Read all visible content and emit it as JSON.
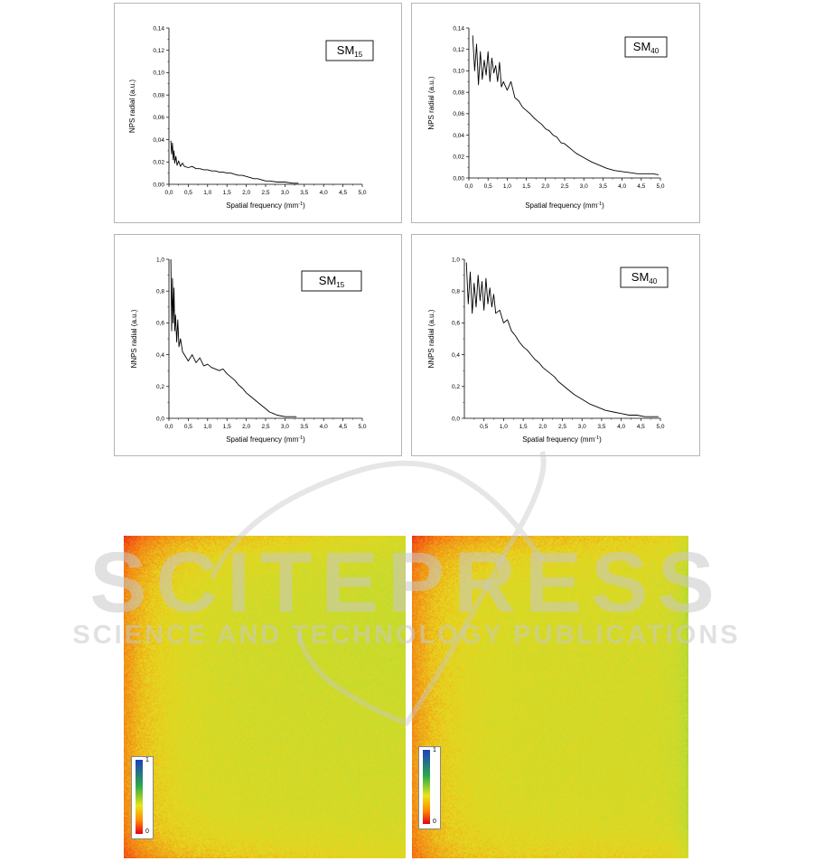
{
  "chart_data": [
    {
      "type": "line",
      "label": "SM",
      "label_sub": "15",
      "xlabel": "Spatial frequency (mm",
      "xlabel_sup": "-1",
      "xlabel_end": ")",
      "ylabel": "NPS radial (a.u.)",
      "xlim": [
        0,
        5
      ],
      "ylim": [
        0,
        0.14
      ],
      "xticks": [
        "0,0",
        "0,5",
        "1,0",
        "1,5",
        "2,0",
        "2,5",
        "3,0",
        "3,5",
        "4,0",
        "4,5",
        "5,0"
      ],
      "yticks": [
        "0,00",
        "0,02",
        "0,04",
        "0,06",
        "0,08",
        "0,10",
        "0,12",
        "0,14"
      ],
      "x": [
        0.05,
        0.07,
        0.09,
        0.11,
        0.13,
        0.15,
        0.18,
        0.21,
        0.25,
        0.3,
        0.35,
        0.4,
        0.5,
        0.6,
        0.7,
        0.8,
        0.9,
        1.0,
        1.1,
        1.2,
        1.3,
        1.4,
        1.5,
        1.6,
        1.7,
        1.8,
        1.9,
        2.0,
        2.1,
        2.2,
        2.3,
        2.4,
        2.5,
        2.6,
        2.8,
        3.0,
        3.2,
        3.35
      ],
      "y": [
        0.039,
        0.027,
        0.037,
        0.022,
        0.03,
        0.019,
        0.025,
        0.017,
        0.021,
        0.016,
        0.019,
        0.016,
        0.015,
        0.016,
        0.014,
        0.014,
        0.013,
        0.013,
        0.012,
        0.012,
        0.011,
        0.011,
        0.01,
        0.01,
        0.009,
        0.008,
        0.008,
        0.007,
        0.006,
        0.005,
        0.005,
        0.004,
        0.003,
        0.003,
        0.002,
        0.002,
        0.001,
        0.001
      ]
    },
    {
      "type": "line",
      "label": "SM",
      "label_sub": "40",
      "xlabel": "Spatial frequency (mm",
      "xlabel_sup": "-1",
      "xlabel_end": ")",
      "ylabel": "NPS radial (a.u.)",
      "xlim": [
        0,
        5
      ],
      "ylim": [
        0,
        0.14
      ],
      "xticks": [
        "0,0",
        "0,5",
        "1,0",
        "1,5",
        "2,0",
        "2,5",
        "3,0",
        "3,5",
        "4,0",
        "4,5",
        "5,0"
      ],
      "yticks": [
        "0,00",
        "0,02",
        "0,04",
        "0,06",
        "0,08",
        "0,10",
        "0,12",
        "0,14"
      ],
      "x": [
        0.1,
        0.15,
        0.2,
        0.25,
        0.3,
        0.35,
        0.4,
        0.45,
        0.5,
        0.55,
        0.6,
        0.65,
        0.7,
        0.75,
        0.8,
        0.85,
        0.9,
        1.0,
        1.1,
        1.2,
        1.3,
        1.4,
        1.5,
        1.6,
        1.7,
        1.8,
        1.9,
        2.0,
        2.1,
        2.2,
        2.3,
        2.4,
        2.5,
        2.6,
        2.7,
        2.8,
        3.0,
        3.2,
        3.4,
        3.6,
        3.8,
        4.0,
        4.2,
        4.4,
        4.6,
        4.8,
        4.95
      ],
      "y": [
        0.133,
        0.1,
        0.125,
        0.087,
        0.118,
        0.092,
        0.11,
        0.096,
        0.118,
        0.09,
        0.112,
        0.098,
        0.105,
        0.09,
        0.108,
        0.085,
        0.09,
        0.082,
        0.09,
        0.075,
        0.072,
        0.066,
        0.063,
        0.06,
        0.056,
        0.053,
        0.05,
        0.046,
        0.044,
        0.04,
        0.038,
        0.033,
        0.032,
        0.029,
        0.026,
        0.023,
        0.019,
        0.015,
        0.012,
        0.009,
        0.007,
        0.006,
        0.005,
        0.004,
        0.004,
        0.004,
        0.003
      ]
    },
    {
      "type": "line",
      "label": "SM",
      "label_sub": "15",
      "xlabel": "Spatial frequency (mm",
      "xlabel_sup": "-1",
      "xlabel_end": ")",
      "ylabel": "NNPS radial (a.u.)",
      "xlim": [
        0,
        5
      ],
      "ylim": [
        0,
        1.0
      ],
      "xticks": [
        "0,0",
        "0,5",
        "1,0",
        "1,5",
        "2,0",
        "2,5",
        "3,0",
        "3,5",
        "4,0",
        "4,5",
        "5,0"
      ],
      "yticks": [
        "0,0",
        "0,2",
        "0,4",
        "0,6",
        "0,8",
        "1,0"
      ],
      "x": [
        0.05,
        0.07,
        0.09,
        0.11,
        0.13,
        0.15,
        0.17,
        0.2,
        0.23,
        0.26,
        0.3,
        0.35,
        0.4,
        0.5,
        0.6,
        0.7,
        0.8,
        0.9,
        1.0,
        1.1,
        1.2,
        1.3,
        1.4,
        1.5,
        1.6,
        1.7,
        1.8,
        1.9,
        2.0,
        2.1,
        2.2,
        2.3,
        2.4,
        2.5,
        2.6,
        2.7,
        2.8,
        3.0,
        3.3
      ],
      "y": [
        1.0,
        0.55,
        0.88,
        0.6,
        0.82,
        0.55,
        0.65,
        0.48,
        0.62,
        0.45,
        0.5,
        0.42,
        0.4,
        0.36,
        0.4,
        0.35,
        0.38,
        0.33,
        0.34,
        0.32,
        0.31,
        0.3,
        0.31,
        0.28,
        0.26,
        0.24,
        0.21,
        0.19,
        0.16,
        0.14,
        0.12,
        0.1,
        0.08,
        0.06,
        0.04,
        0.03,
        0.02,
        0.01,
        0.01
      ]
    },
    {
      "type": "line",
      "label": "SM",
      "label_sub": "40",
      "xlabel": "Spatial frequency (mm",
      "xlabel_sup": "-1",
      "xlabel_end": ")",
      "ylabel": "NNPS radial (a.u.)",
      "xlim": [
        0,
        5
      ],
      "ylim": [
        0,
        1.0
      ],
      "xticks": [
        "0,5",
        "1,0",
        "1,5",
        "2,0",
        "2,5",
        "3,0",
        "3,5",
        "4,0",
        "4,5",
        "5,0"
      ],
      "yticks": [
        "0,0",
        "0,2",
        "0,4",
        "0,6",
        "0,8",
        "1,0"
      ],
      "x": [
        0.05,
        0.1,
        0.15,
        0.2,
        0.25,
        0.3,
        0.35,
        0.4,
        0.45,
        0.5,
        0.55,
        0.6,
        0.65,
        0.7,
        0.75,
        0.8,
        0.9,
        1.0,
        1.1,
        1.2,
        1.3,
        1.4,
        1.5,
        1.6,
        1.7,
        1.8,
        1.9,
        2.0,
        2.1,
        2.2,
        2.3,
        2.4,
        2.5,
        2.6,
        2.8,
        3.0,
        3.2,
        3.4,
        3.6,
        3.8,
        4.0,
        4.2,
        4.4,
        4.6,
        4.8,
        4.95
      ],
      "y": [
        0.98,
        0.72,
        0.92,
        0.66,
        0.85,
        0.7,
        0.9,
        0.74,
        0.86,
        0.68,
        0.88,
        0.72,
        0.82,
        0.7,
        0.78,
        0.66,
        0.68,
        0.6,
        0.62,
        0.55,
        0.52,
        0.48,
        0.45,
        0.43,
        0.4,
        0.37,
        0.35,
        0.32,
        0.3,
        0.28,
        0.26,
        0.23,
        0.21,
        0.19,
        0.15,
        0.12,
        0.09,
        0.07,
        0.05,
        0.04,
        0.03,
        0.02,
        0.02,
        0.01,
        0.01,
        0.01
      ]
    },
    {
      "type": "heatmap",
      "colorbar_max": "1",
      "colorbar_min": "0"
    },
    {
      "type": "heatmap",
      "colorbar_max": "1",
      "colorbar_min": "0"
    }
  ],
  "watermark": {
    "title": "SCITEPRESS",
    "subtitle": "SCIENCE AND TECHNOLOGY PUBLICATIONS"
  },
  "colors": {
    "line": "#000000",
    "panel_border": "#b5b5b5",
    "watermark": "#c8c8c8"
  }
}
